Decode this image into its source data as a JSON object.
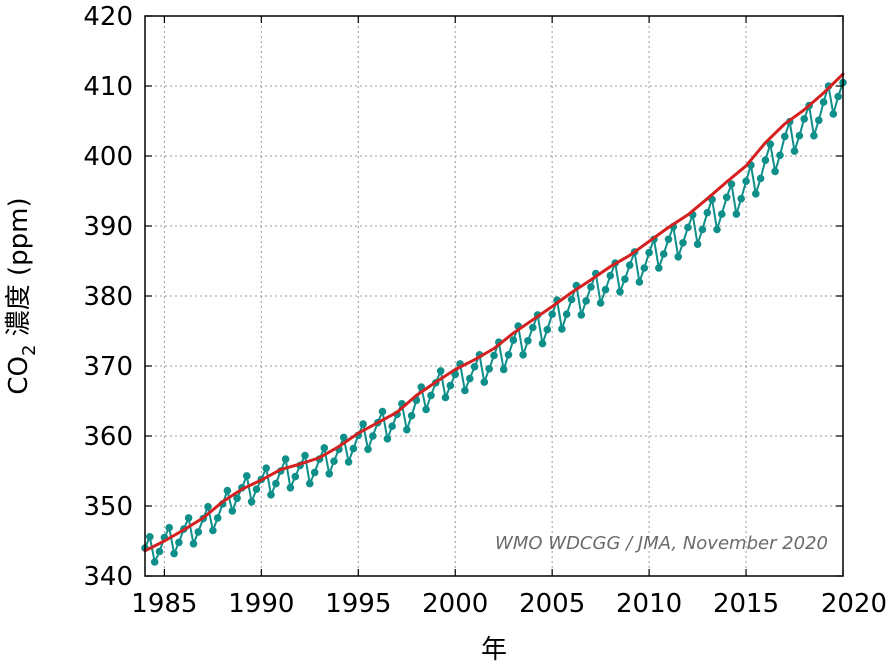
{
  "chart_data": {
    "type": "line",
    "xlabel": "年",
    "ylabel_main": "CO",
    "ylabel_sub": "2",
    "ylabel_rest": " 濃度 (ppm)",
    "annotation": "WMO WDCGG / JMA, November 2020",
    "xlim": [
      1984,
      2020
    ],
    "ylim": [
      340,
      420
    ],
    "xticks": [
      1985,
      1990,
      1995,
      2000,
      2005,
      2010,
      2015,
      2020
    ],
    "yticks": [
      340,
      350,
      360,
      370,
      380,
      390,
      400,
      410,
      420
    ],
    "grid": true,
    "colors": {
      "monthly": "#0f8f8a",
      "trend": "#d42020"
    },
    "series": [
      {
        "role": "monthly",
        "x": [
          1984.0,
          1984.25,
          1984.5,
          1984.75,
          1985.0,
          1985.25,
          1985.5,
          1985.75,
          1986.0,
          1986.25,
          1986.5,
          1986.75,
          1987.0,
          1987.25,
          1987.5,
          1987.75,
          1988.0,
          1988.25,
          1988.5,
          1988.75,
          1989.0,
          1989.25,
          1989.5,
          1989.75,
          1990.0,
          1990.25,
          1990.5,
          1990.75,
          1991.0,
          1991.25,
          1991.5,
          1991.75,
          1992.0,
          1992.25,
          1992.5,
          1992.75,
          1993.0,
          1993.25,
          1993.5,
          1993.75,
          1994.0,
          1994.25,
          1994.5,
          1994.75,
          1995.0,
          1995.25,
          1995.5,
          1995.75,
          1996.0,
          1996.25,
          1996.5,
          1996.75,
          1997.0,
          1997.25,
          1997.5,
          1997.75,
          1998.0,
          1998.25,
          1998.5,
          1998.75,
          1999.0,
          1999.25,
          1999.5,
          1999.75,
          2000.0,
          2000.25,
          2000.5,
          2000.75,
          2001.0,
          2001.25,
          2001.5,
          2001.75,
          2002.0,
          2002.25,
          2002.5,
          2002.75,
          2003.0,
          2003.25,
          2003.5,
          2003.75,
          2004.0,
          2004.25,
          2004.5,
          2004.75,
          2005.0,
          2005.25,
          2005.5,
          2005.75,
          2006.0,
          2006.25,
          2006.5,
          2006.75,
          2007.0,
          2007.25,
          2007.5,
          2007.75,
          2008.0,
          2008.25,
          2008.5,
          2008.75,
          2009.0,
          2009.25,
          2009.5,
          2009.75,
          2010.0,
          2010.25,
          2010.5,
          2010.75,
          2011.0,
          2011.25,
          2011.5,
          2011.75,
          2012.0,
          2012.25,
          2012.5,
          2012.75,
          2013.0,
          2013.25,
          2013.5,
          2013.75,
          2014.0,
          2014.25,
          2014.5,
          2014.75,
          2015.0,
          2015.25,
          2015.5,
          2015.75,
          2016.0,
          2016.25,
          2016.5,
          2016.75,
          2017.0,
          2017.25,
          2017.5,
          2017.75,
          2018.0,
          2018.25,
          2018.5,
          2018.75,
          2019.0,
          2019.25,
          2019.5,
          2019.75,
          2020.0
        ],
        "y": [
          344.0,
          345.6,
          342.0,
          343.5,
          345.5,
          346.9,
          343.2,
          344.8,
          346.7,
          348.3,
          344.6,
          346.3,
          348.2,
          349.9,
          346.5,
          348.3,
          350.3,
          352.2,
          349.3,
          351.1,
          352.6,
          354.3,
          350.6,
          352.4,
          353.8,
          355.4,
          351.6,
          353.2,
          355.0,
          356.7,
          352.6,
          354.2,
          355.8,
          357.2,
          353.2,
          354.8,
          356.7,
          358.3,
          354.6,
          356.4,
          358.1,
          359.8,
          356.3,
          358.2,
          360.1,
          361.7,
          358.1,
          360.0,
          361.9,
          363.5,
          359.6,
          361.4,
          363.1,
          364.6,
          360.9,
          362.9,
          365.1,
          367.0,
          363.8,
          365.8,
          367.6,
          369.3,
          365.5,
          367.2,
          368.8,
          370.3,
          366.5,
          368.2,
          369.9,
          371.6,
          367.7,
          369.6,
          371.5,
          373.4,
          369.5,
          371.6,
          373.7,
          375.7,
          371.6,
          373.6,
          375.5,
          377.3,
          373.2,
          375.2,
          377.4,
          379.4,
          375.3,
          377.4,
          379.5,
          381.5,
          377.3,
          379.3,
          381.3,
          383.2,
          379.0,
          380.9,
          382.9,
          384.7,
          380.6,
          382.4,
          384.4,
          386.3,
          382.0,
          384.0,
          386.2,
          388.1,
          384.0,
          386.0,
          388.1,
          389.9,
          385.6,
          387.6,
          389.8,
          391.6,
          387.4,
          389.5,
          391.9,
          393.8,
          389.5,
          391.7,
          394.1,
          396.0,
          391.7,
          393.9,
          396.4,
          398.7,
          394.6,
          396.8,
          399.4,
          401.7,
          397.8,
          400.1,
          402.8,
          404.9,
          400.7,
          402.9,
          405.3,
          407.2,
          402.9,
          405.1,
          407.7,
          410.0,
          406.0,
          408.5,
          410.5
        ]
      },
      {
        "role": "trend",
        "x": [
          1984,
          1985,
          1986,
          1987,
          1988,
          1989,
          1990,
          1991,
          1992,
          1993,
          1994,
          1995,
          1996,
          1997,
          1998,
          1999,
          2000,
          2001,
          2002,
          2003,
          2004,
          2005,
          2006,
          2007,
          2008,
          2009,
          2010,
          2011,
          2012,
          2013,
          2014,
          2015,
          2016,
          2017,
          2018,
          2019,
          2020
        ],
        "y": [
          343.6,
          345.0,
          346.6,
          348.3,
          350.6,
          352.4,
          353.7,
          355.2,
          356.0,
          356.9,
          358.5,
          360.4,
          361.9,
          363.4,
          365.8,
          367.7,
          369.5,
          370.9,
          372.5,
          374.7,
          376.6,
          378.5,
          380.5,
          382.3,
          384.2,
          385.8,
          387.8,
          389.8,
          391.6,
          393.9,
          396.3,
          398.6,
          401.9,
          404.6,
          406.6,
          409.0,
          411.7
        ]
      }
    ]
  }
}
